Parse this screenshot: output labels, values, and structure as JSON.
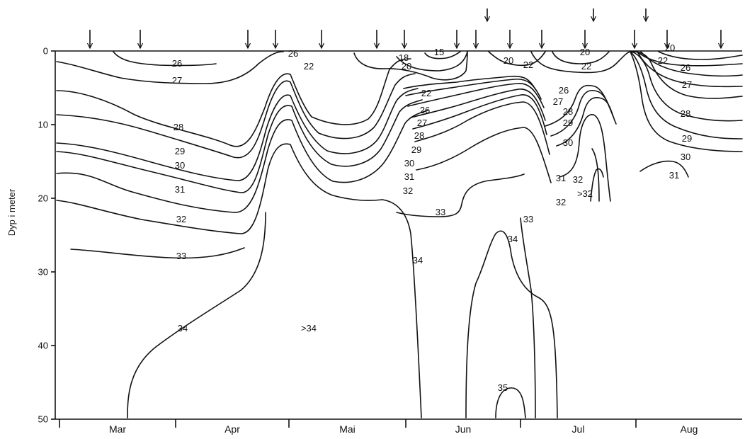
{
  "chart_data": {
    "type": "contour",
    "title": "",
    "xlabel": "",
    "ylabel": "Dyp i meter",
    "ylim": [
      0,
      50
    ],
    "yticks": [
      0,
      10,
      20,
      30,
      40,
      50
    ],
    "months": [
      "Mar",
      "Apr",
      "Mai",
      "Jun",
      "Jul",
      "Aug"
    ],
    "contour_labels": [
      "26",
      "27",
      "28",
      "29",
      "30",
      "31",
      "32",
      "33",
      "34",
      "26",
      "22",
      "18",
      "15",
      "20",
      "20",
      "22",
      "20",
      "22",
      "20",
      "22",
      "26",
      "27",
      "28",
      "29",
      "30",
      "31",
      "22",
      "26",
      "27",
      "28",
      "29",
      "30",
      "31",
      "32",
      "33",
      "26",
      "27",
      "28",
      "29",
      "30",
      "31",
      "32",
      ">32",
      "32",
      "33",
      "34",
      "34",
      "35",
      ">34"
    ],
    "region_labels": [
      ">34",
      ">32"
    ],
    "arrows_count": 18
  }
}
